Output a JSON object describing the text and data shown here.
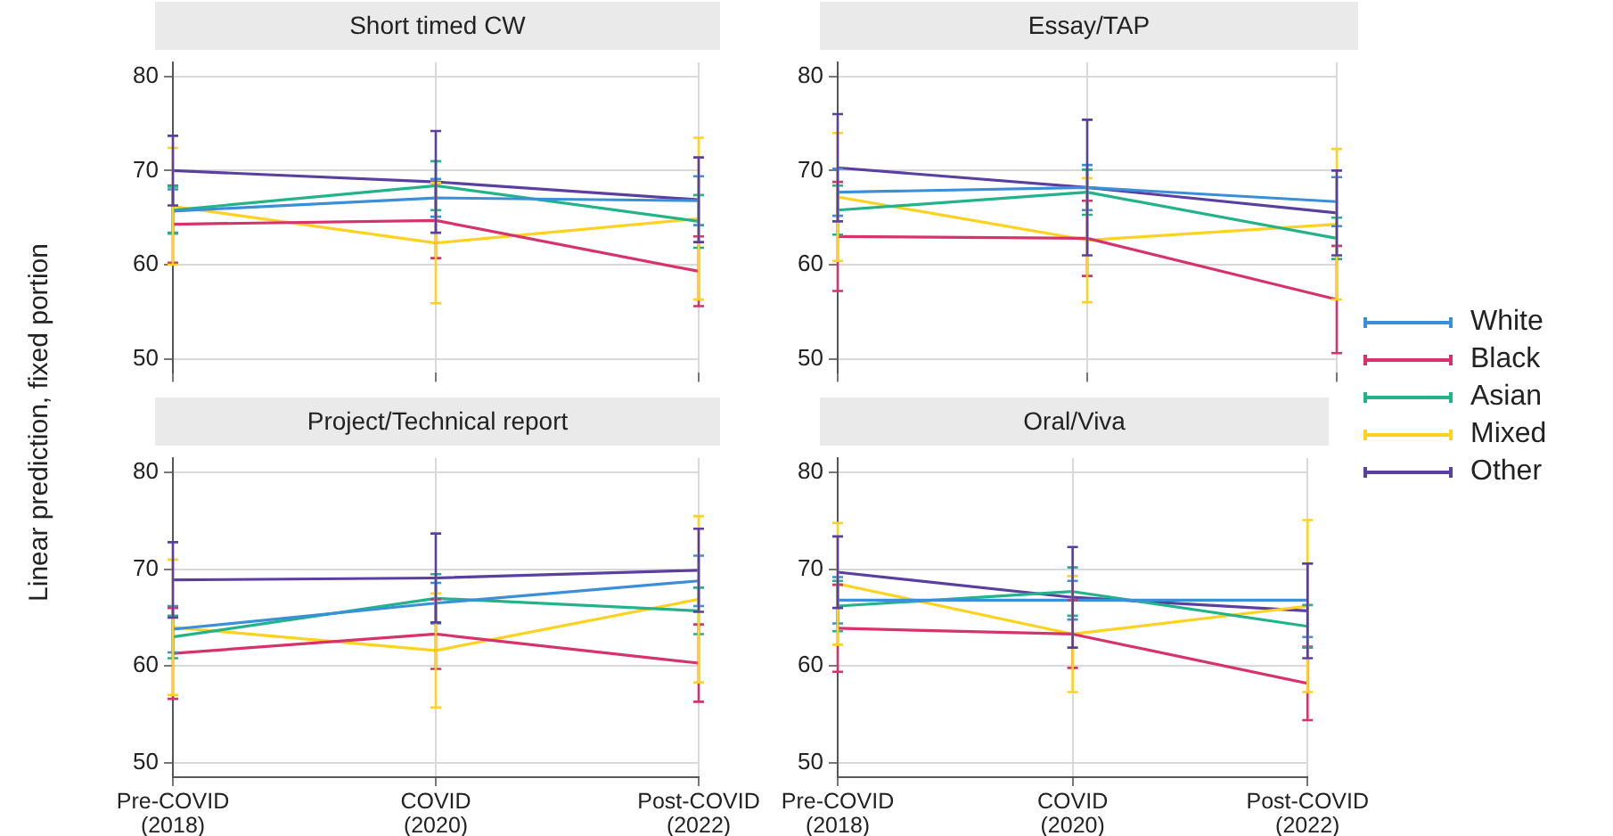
{
  "chart_data": [
    {
      "type": "line",
      "title": "Short timed CW",
      "ylabel": "Linear prediction, fixed portion",
      "legend": "right",
      "grid": true,
      "marker": "none",
      "line_style": "solid",
      "tick_labels": "y",
      "categories": [
        null,
        null,
        null
      ],
      "ylim": [
        48.5,
        81.5
      ],
      "yticks": [
        50,
        60,
        70,
        80
      ],
      "series": [
        {
          "name": "White",
          "color": "#3b8fd9",
          "values": [
            65.7,
            67.1,
            66.8
          ],
          "errors": [
            2.3,
            2.0,
            2.6
          ]
        },
        {
          "name": "Black",
          "color": "#d6336c",
          "values": [
            64.3,
            64.7,
            59.3
          ],
          "errors": [
            4.1,
            4.0,
            3.7
          ]
        },
        {
          "name": "Asian",
          "color": "#22b38a",
          "values": [
            65.8,
            68.4,
            64.6
          ],
          "errors": [
            2.5,
            2.6,
            2.8
          ]
        },
        {
          "name": "Mixed",
          "color": "#ffd21f",
          "values": [
            66.2,
            62.3,
            64.9
          ],
          "errors": [
            6.2,
            6.4,
            8.6
          ]
        },
        {
          "name": "Other",
          "color": "#5b3fa0",
          "values": [
            70.0,
            68.8,
            66.9
          ],
          "errors": [
            3.7,
            5.4,
            4.5
          ]
        }
      ]
    },
    {
      "type": "line",
      "title": "Essay/TAP",
      "grid": true,
      "marker": "none",
      "line_style": "solid",
      "tick_labels": "y",
      "categories": [
        null,
        null,
        null
      ],
      "ylim": [
        48.5,
        81.5
      ],
      "yticks": [
        50,
        60,
        70,
        80
      ],
      "series": [
        {
          "color": "#3b8fd9",
          "values": [
            67.7,
            68.2,
            66.7
          ],
          "errors": [
            2.5,
            2.4,
            2.6
          ]
        },
        {
          "color": "#d6336c",
          "values": [
            63.0,
            62.8,
            56.3
          ],
          "errors": [
            5.8,
            4.0,
            5.7
          ]
        },
        {
          "color": "#22b38a",
          "values": [
            65.8,
            67.7,
            62.8
          ],
          "errors": [
            2.6,
            2.4,
            2.2
          ]
        },
        {
          "color": "#ffd21f",
          "values": [
            67.2,
            62.6,
            64.3
          ],
          "errors": [
            6.8,
            6.6,
            8.0
          ]
        },
        {
          "color": "#5b3fa0",
          "values": [
            70.3,
            68.2,
            65.5
          ],
          "errors": [
            5.7,
            7.2,
            4.5
          ]
        }
      ]
    },
    {
      "type": "line",
      "title": "Project/Technical report",
      "grid": true,
      "marker": "none",
      "line_style": "solid",
      "categories": [
        "Pre-COVID (2018)",
        "COVID (2020)",
        "Post-COVID (2022)"
      ],
      "ylim": [
        48.5,
        81.5
      ],
      "yticks": [
        50,
        60,
        70,
        80
      ],
      "series": [
        {
          "color": "#3b8fd9",
          "values": [
            63.8,
            66.5,
            68.8
          ],
          "errors": [
            2.4,
            2.1,
            2.6
          ]
        },
        {
          "color": "#d6336c",
          "values": [
            61.3,
            63.3,
            60.3
          ],
          "errors": [
            4.7,
            3.6,
            4.0
          ]
        },
        {
          "color": "#22b38a",
          "values": [
            63.0,
            67.0,
            65.7
          ],
          "errors": [
            2.2,
            2.5,
            2.4
          ]
        },
        {
          "color": "#ffd21f",
          "values": [
            64.0,
            61.6,
            66.9
          ],
          "errors": [
            7.0,
            5.9,
            8.6
          ]
        },
        {
          "color": "#5b3fa0",
          "values": [
            68.9,
            69.1,
            69.9
          ],
          "errors": [
            3.9,
            4.6,
            4.3
          ]
        }
      ]
    },
    {
      "type": "line",
      "title": "Oral/Viva",
      "grid": true,
      "marker": "none",
      "line_style": "solid",
      "categories": [
        "Pre-COVID (2018)",
        "COVID (2020)",
        "Post-COVID (2022)"
      ],
      "ylim": [
        48.5,
        81.5
      ],
      "yticks": [
        50,
        60,
        70,
        80
      ],
      "series": [
        {
          "color": "#3b8fd9",
          "values": [
            66.8,
            66.8,
            66.8
          ],
          "errors": [
            2.4,
            2.0,
            3.8
          ]
        },
        {
          "color": "#d6336c",
          "values": [
            63.9,
            63.3,
            58.2
          ],
          "errors": [
            4.5,
            3.5,
            3.8
          ]
        },
        {
          "color": "#22b38a",
          "values": [
            66.2,
            67.7,
            64.1
          ],
          "errors": [
            2.6,
            2.5,
            2.2
          ]
        },
        {
          "color": "#ffd21f",
          "values": [
            68.5,
            63.3,
            66.2
          ],
          "errors": [
            6.3,
            6.0,
            8.9
          ]
        },
        {
          "color": "#5b3fa0",
          "values": [
            69.7,
            67.1,
            65.7
          ],
          "errors": [
            3.7,
            5.2,
            4.9
          ]
        }
      ]
    }
  ]
}
